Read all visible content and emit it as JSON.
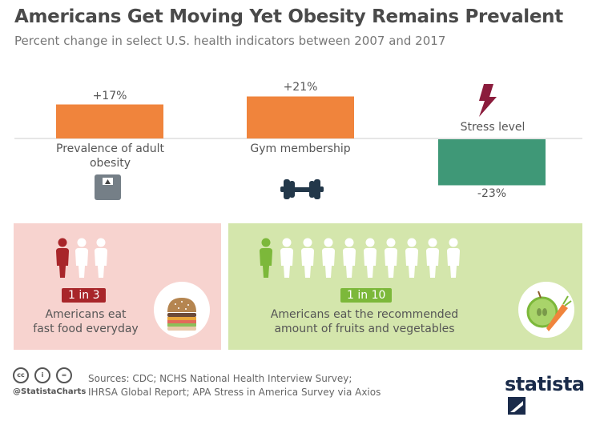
{
  "header": {
    "title": "Americans Get Moving Yet Obesity Remains Prevalent",
    "subtitle": "Percent change in select U.S. health indicators between 2007 and 2017"
  },
  "chart_data": {
    "type": "bar",
    "categories": [
      "Prevalence of adult obesity",
      "Gym membership",
      "Stress level"
    ],
    "values": [
      17,
      21,
      -23
    ],
    "data_labels": [
      "+17%",
      "+21%",
      "-23%"
    ],
    "colors": {
      "positive": "#f0843c",
      "negative": "#3f9877"
    },
    "category_icons": [
      "scale-icon",
      "dumbbell-icon",
      "lightning-icon"
    ],
    "grid": false
  },
  "panels": {
    "fast_food": {
      "badge": "1 in 3",
      "line1": "Americans eat",
      "line2": "fast food everyday",
      "highlighted": 1,
      "total": 3,
      "bg": "#f7d3cf",
      "accent": "#a8262a",
      "icon": "burger-icon"
    },
    "fruits": {
      "badge": "1 in 10",
      "line1": "Americans eat the recommended",
      "line2": "amount of fruits and vegetables",
      "highlighted": 1,
      "total": 10,
      "bg": "#d4e6ac",
      "accent": "#7cb83a",
      "icon": "apple-carrot-icon"
    }
  },
  "footer": {
    "handle": "@StatistaCharts",
    "sources_line1": "Sources: CDC; NCHS National Health Interview Survey;",
    "sources_line2": "IHRSA Global Report; APA Stress in America Survey via Axios",
    "logo": "statista",
    "cc_icons": [
      "cc",
      "i",
      "="
    ]
  }
}
